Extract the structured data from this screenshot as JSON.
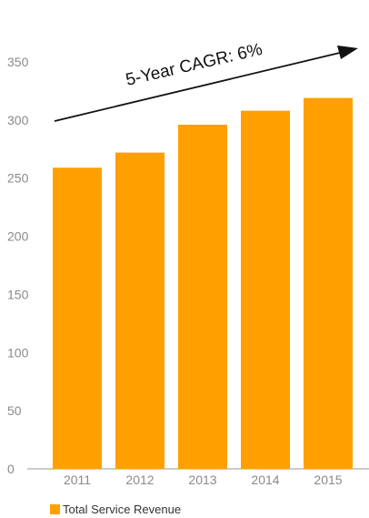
{
  "chart_data": {
    "type": "bar",
    "categories": [
      "2011",
      "2012",
      "2013",
      "2014",
      "2015"
    ],
    "series": [
      {
        "name": "Total Service Revenue",
        "values": [
          259,
          272,
          296,
          308,
          319
        ],
        "color": "#FFA000"
      }
    ],
    "ylim": [
      0,
      350
    ],
    "yticks": [
      0,
      50,
      100,
      150,
      200,
      250,
      300,
      350
    ],
    "legend": {
      "position": "bottom-left"
    },
    "grid": false,
    "annotation": {
      "text": "5-Year CAGR: 6%",
      "arrow": true
    }
  }
}
